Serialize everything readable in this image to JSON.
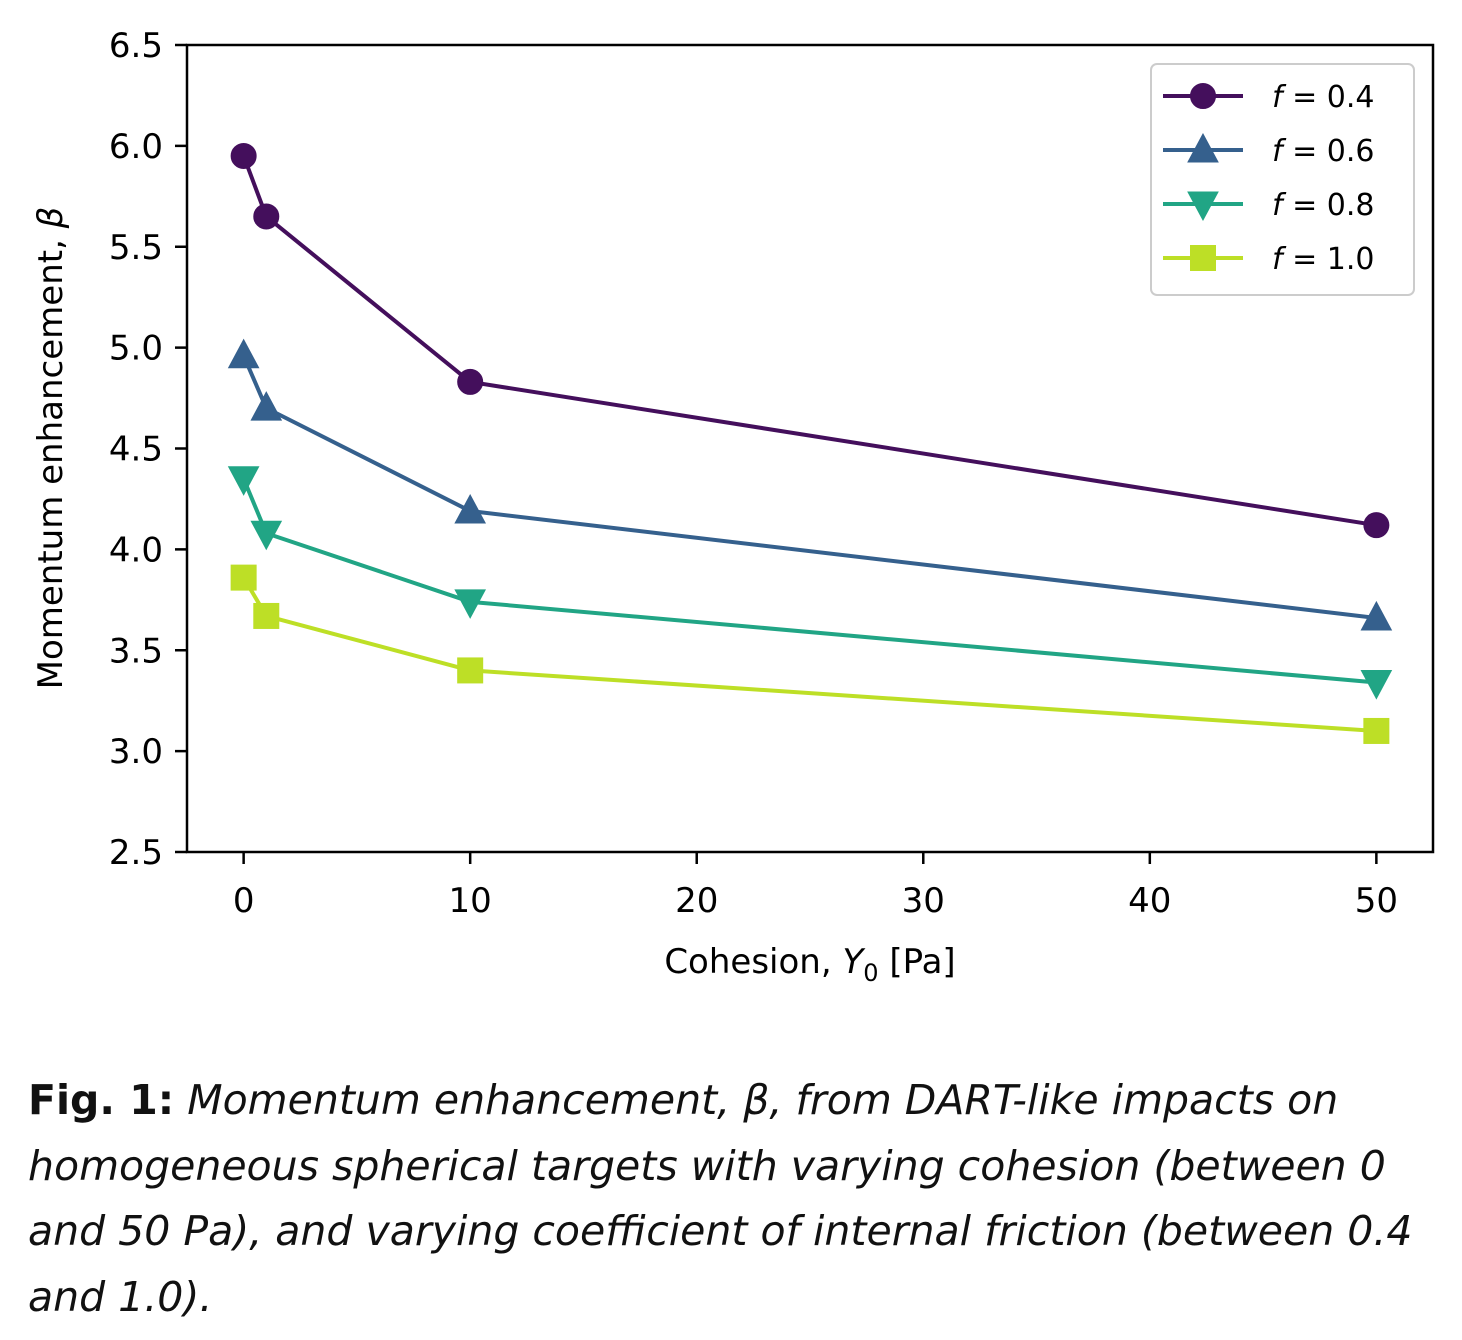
{
  "chart_data": {
    "type": "line",
    "xlabel_prefix": "Cohesion, ",
    "xlabel_var": "Y",
    "xlabel_sub": "0",
    "xlabel_suffix": " [Pa]",
    "ylabel_prefix": "Momentum enhancement, ",
    "ylabel_var": "β",
    "xlim": [
      -2.5,
      52.5
    ],
    "ylim": [
      2.5,
      6.5
    ],
    "xticks": [
      "0",
      "10",
      "20",
      "30",
      "40",
      "50"
    ],
    "yticks": [
      "2.5",
      "3.0",
      "3.5",
      "4.0",
      "4.5",
      "5.0",
      "5.5",
      "6.0",
      "6.5"
    ],
    "grid": false,
    "legend_position": "top-right",
    "x": [
      0,
      1,
      10,
      50
    ],
    "series": [
      {
        "name": "f = 0.4",
        "legend_var": "f",
        "legend_rest": " = 0.4",
        "marker": "circle",
        "color": "#440f5c",
        "values": [
          5.95,
          5.65,
          4.83,
          4.12
        ]
      },
      {
        "name": "f = 0.6",
        "legend_var": "f",
        "legend_rest": " = 0.6",
        "marker": "triangle-up",
        "color": "#35608d",
        "values": [
          4.96,
          4.7,
          4.19,
          3.66
        ]
      },
      {
        "name": "f = 0.8",
        "legend_var": "f",
        "legend_rest": " = 0.8",
        "marker": "triangle-down",
        "color": "#21a585",
        "values": [
          4.35,
          4.08,
          3.74,
          3.34
        ]
      },
      {
        "name": "f = 1.0",
        "legend_var": "f",
        "legend_rest": " = 1.0",
        "marker": "square",
        "color": "#bddf26",
        "values": [
          3.86,
          3.67,
          3.4,
          3.1
        ]
      }
    ]
  },
  "caption": {
    "label": "Fig. 1:",
    "text": " Momentum enhancement, β, from DART-like impacts on homogeneous spherical targets with varying cohesion (between 0 and 50 Pa), and varying coefficient of internal friction (between 0.4 and 1.0)."
  }
}
